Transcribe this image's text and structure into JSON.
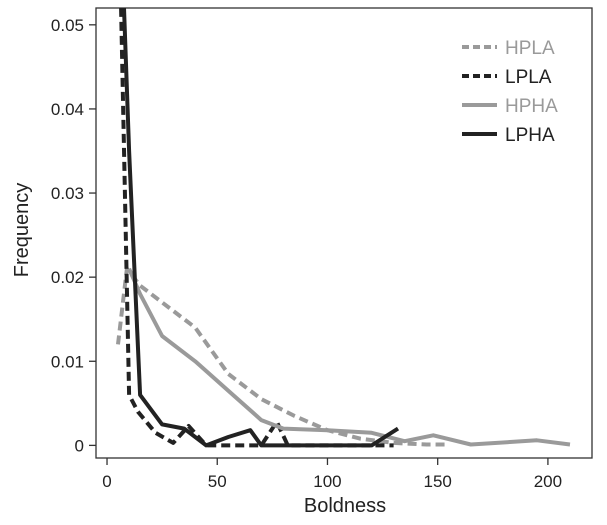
{
  "chart_data": {
    "type": "line",
    "title": "",
    "xlabel": "Boldness",
    "ylabel": "Frequency",
    "xlim": [
      -5,
      220
    ],
    "ylim": [
      -0.0015,
      0.052
    ],
    "x_ticks": [
      0,
      50,
      100,
      150,
      200
    ],
    "x_tick_labels": [
      "0",
      "50",
      "100",
      "150",
      "200"
    ],
    "y_ticks": [
      0,
      0.01,
      0.02,
      0.03,
      0.04,
      0.05
    ],
    "y_tick_labels": [
      "0",
      "0.01",
      "0.02",
      "0.03",
      "0.04",
      "0.05"
    ],
    "grid": false,
    "legend_position": "top-right",
    "series": [
      {
        "name": "HPLA",
        "color": "#9a9a9a",
        "dash": "dashed",
        "x": [
          5,
          9,
          15,
          25,
          40,
          55,
          70,
          85,
          100,
          115,
          130,
          145,
          155
        ],
        "y": [
          0.012,
          0.021,
          0.019,
          0.017,
          0.014,
          0.0085,
          0.0055,
          0.0035,
          0.0018,
          0.0008,
          0.0003,
          0.0001,
          0.0001
        ]
      },
      {
        "name": "LPLA",
        "color": "#222222",
        "dash": "dashed",
        "x": [
          6,
          10,
          14,
          22,
          30,
          37,
          45,
          60,
          70,
          77,
          82,
          90,
          130
        ],
        "y": [
          0.057,
          0.006,
          0.004,
          0.0015,
          0.0003,
          0.0023,
          0.0,
          0.0,
          0.0,
          0.0028,
          0.0,
          0.0,
          0.0
        ]
      },
      {
        "name": "HPHA",
        "color": "#9a9a9a",
        "dash": "solid",
        "x": [
          10,
          15,
          25,
          40,
          55,
          70,
          80,
          100,
          120,
          135,
          148,
          165,
          195,
          210
        ],
        "y": [
          0.021,
          0.018,
          0.013,
          0.01,
          0.0065,
          0.003,
          0.002,
          0.0018,
          0.0015,
          0.0005,
          0.0012,
          0.0001,
          0.0006,
          0.0001
        ]
      },
      {
        "name": "LPHA",
        "color": "#222222",
        "dash": "solid",
        "x": [
          7,
          10,
          15,
          25,
          35,
          45,
          55,
          65,
          70,
          80,
          100,
          120,
          132
        ],
        "y": [
          0.057,
          0.035,
          0.006,
          0.0025,
          0.002,
          0.0,
          0.001,
          0.0018,
          0.0,
          0.0,
          0.0,
          0.0,
          0.002
        ]
      }
    ]
  }
}
